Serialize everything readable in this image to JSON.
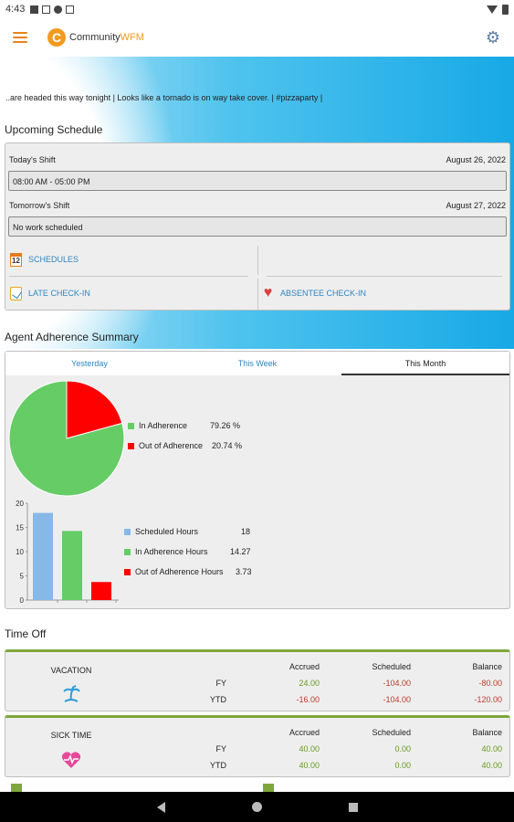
{
  "status_bar": {
    "time": "4:43"
  },
  "app": {
    "logo_letter": "C",
    "name_part1": "Community",
    "name_part2": "WFM"
  },
  "ticker": {
    "text": "..are headed this way tonight  |  Looks like a tornado is on way take cover.  |  #pizzaparty  |"
  },
  "upcoming": {
    "title": "Upcoming Schedule",
    "today_label": "Today's Shift",
    "today_date": "August 26, 2022",
    "today_shift": "08:00 AM - 05:00 PM",
    "tomorrow_label": "Tomorrow's Shift",
    "tomorrow_date": "August 27, 2022",
    "tomorrow_shift": "No work scheduled",
    "calendar_day": "12",
    "schedules_label": "SCHEDULES",
    "late_checkin_label": "LATE CHECK-IN",
    "absentee_checkin_label": "ABSENTEE CHECK-IN"
  },
  "adherence": {
    "title": "Agent Adherence Summary",
    "tabs": [
      "Yesterday",
      "This Week",
      "This Month"
    ],
    "active_tab": 2
  },
  "chart_data": [
    {
      "type": "pie",
      "categories": [
        "In Adherence",
        "Out of Adherence"
      ],
      "values": [
        79.26,
        20.74
      ],
      "value_labels": [
        "79.26 %",
        "20.74 %"
      ],
      "colors": [
        "#66cc66",
        "#ff0000"
      ],
      "legend": "right"
    },
    {
      "type": "bar",
      "categories": [
        "Scheduled Hours",
        "In Adherence Hours",
        "Out of Adherence Hours"
      ],
      "values": [
        18,
        14.27,
        3.73
      ],
      "value_labels": [
        "18",
        "14.27",
        "3.73"
      ],
      "colors": [
        "#86b8e8",
        "#66cc66",
        "#ff0000"
      ],
      "yticks": [
        "0",
        "5",
        "10",
        "15",
        "20"
      ],
      "ylim": [
        0,
        20
      ],
      "grid": false,
      "legend": "right"
    }
  ],
  "timeoff": {
    "title": "Time Off",
    "headers": [
      "Accrued",
      "Scheduled",
      "Balance"
    ],
    "row_labels": [
      "FY",
      "YTD"
    ],
    "cards": [
      {
        "name": "VACATION",
        "fy": [
          "24.00",
          "-104.00",
          "-80.00"
        ],
        "ytd": [
          "-16.00",
          "-104.00",
          "-120.00"
        ]
      },
      {
        "name": "SICK TIME",
        "fy": [
          "40.00",
          "0.00",
          "40.00"
        ],
        "ytd": [
          "40.00",
          "0.00",
          "40.00"
        ]
      }
    ]
  }
}
